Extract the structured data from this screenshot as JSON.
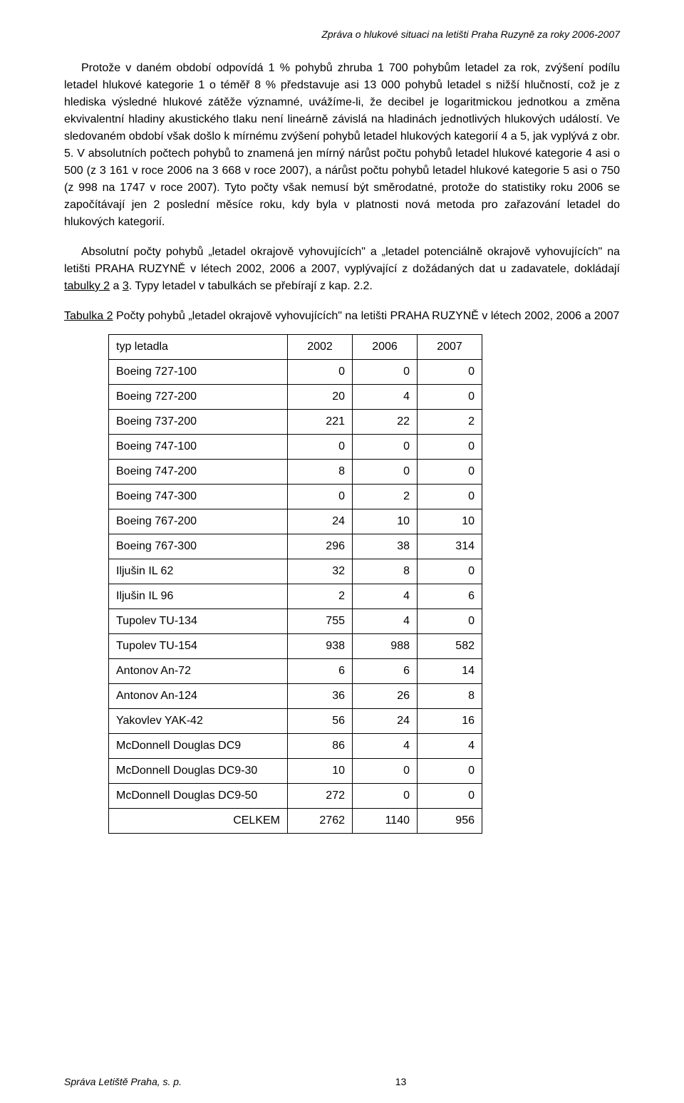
{
  "header": "Zpráva o hlukové situaci  na letišti Praha Ruzyně za roky 2006-2007",
  "paragraphs": {
    "p1": "Protože v daném období odpovídá 1 % pohybů zhruba 1 700 pohybům letadel za rok, zvýšení podílu letadel hlukové kategorie 1 o téměř 8 % představuje asi 13 000 pohybů letadel s nižší hlučností, což je z hlediska výsledné hlukové zátěže významné, uvážíme-li, že decibel je logaritmickou jednotkou a změna ekvivalentní hladiny akustického tlaku není lineárně závislá na hladinách jednotlivých hlukových událostí. Ve sledovaném období však došlo k mírnému zvýšení pohybů letadel hlukových kategorií 4 a 5, jak vyplývá z obr. 5. V absolutních počtech pohybů to znamená jen mírný nárůst počtu pohybů letadel hlukové kategorie 4 asi o 500 (z 3 161 v roce 2006 na 3 668 v roce 2007),  a nárůst počtu pohybů letadel hlukové kategorie 5 asi o 750 (z 998 na 1747 v roce 2007). Tyto počty však nemusí být směrodatné, protože do statistiky roku 2006 se započítávají jen 2 poslední měsíce roku, kdy byla v platnosti nová metoda pro zařazování letadel do hlukových kategorií.",
    "p2_a": "Absolutní počty pohybů „letadel okrajově vyhovujících\" a „letadel potenciálně okrajově vyhovujících\" na letišti PRAHA RUZYNĚ v létech 2002, 2006 a 2007, vyplývající z dožádaných dat u zadavatele, dokládají ",
    "p2_b": "tabulky 2",
    "p2_c": " a ",
    "p2_d": "3",
    "p2_e": ". Typy letadel v tabulkách se přebírají z kap. 2.2."
  },
  "table_caption": {
    "label": "Tabulka 2",
    "text_a": "   Počty pohybů „letadel okrajově vyhovujících\" na letišti PRAHA RUZYNĚ v létech 2002, 2006 a 2007"
  },
  "table": {
    "columns": [
      "typ letadla",
      "2002",
      "2006",
      "2007"
    ],
    "rows": [
      [
        "Boeing 727-100",
        "0",
        "0",
        "0"
      ],
      [
        "Boeing 727-200",
        "20",
        "4",
        "0"
      ],
      [
        "Boeing 737-200",
        "221",
        "22",
        "2"
      ],
      [
        "Boeing 747-100",
        "0",
        "0",
        "0"
      ],
      [
        "Boeing 747-200",
        "8",
        "0",
        "0"
      ],
      [
        "Boeing 747-300",
        "0",
        "2",
        "0"
      ],
      [
        "Boeing 767-200",
        "24",
        "10",
        "10"
      ],
      [
        "Boeing 767-300",
        "296",
        "38",
        "314"
      ],
      [
        "Iljušin IL 62",
        "32",
        "8",
        "0"
      ],
      [
        "Iljušin IL 96",
        "2",
        "4",
        "6"
      ],
      [
        "Tupolev TU-134",
        "755",
        "4",
        "0"
      ],
      [
        "Tupolev TU-154",
        "938",
        "988",
        "582"
      ],
      [
        "Antonov An-72",
        "6",
        "6",
        "14"
      ],
      [
        "Antonov An-124",
        "36",
        "26",
        "8"
      ],
      [
        "Yakovlev YAK-42",
        "56",
        "24",
        "16"
      ],
      [
        "McDonnell Douglas DC9",
        "86",
        "4",
        "4"
      ],
      [
        "McDonnell Douglas DC9-30",
        "10",
        "0",
        "0"
      ],
      [
        "McDonnell Douglas DC9-50",
        "272",
        "0",
        "0"
      ]
    ],
    "sum_label": "CELKEM",
    "sum_row": [
      "2762",
      "1140",
      "956"
    ]
  },
  "footer": {
    "left": "Správa Letiště Praha, s. p.",
    "page": "13"
  }
}
